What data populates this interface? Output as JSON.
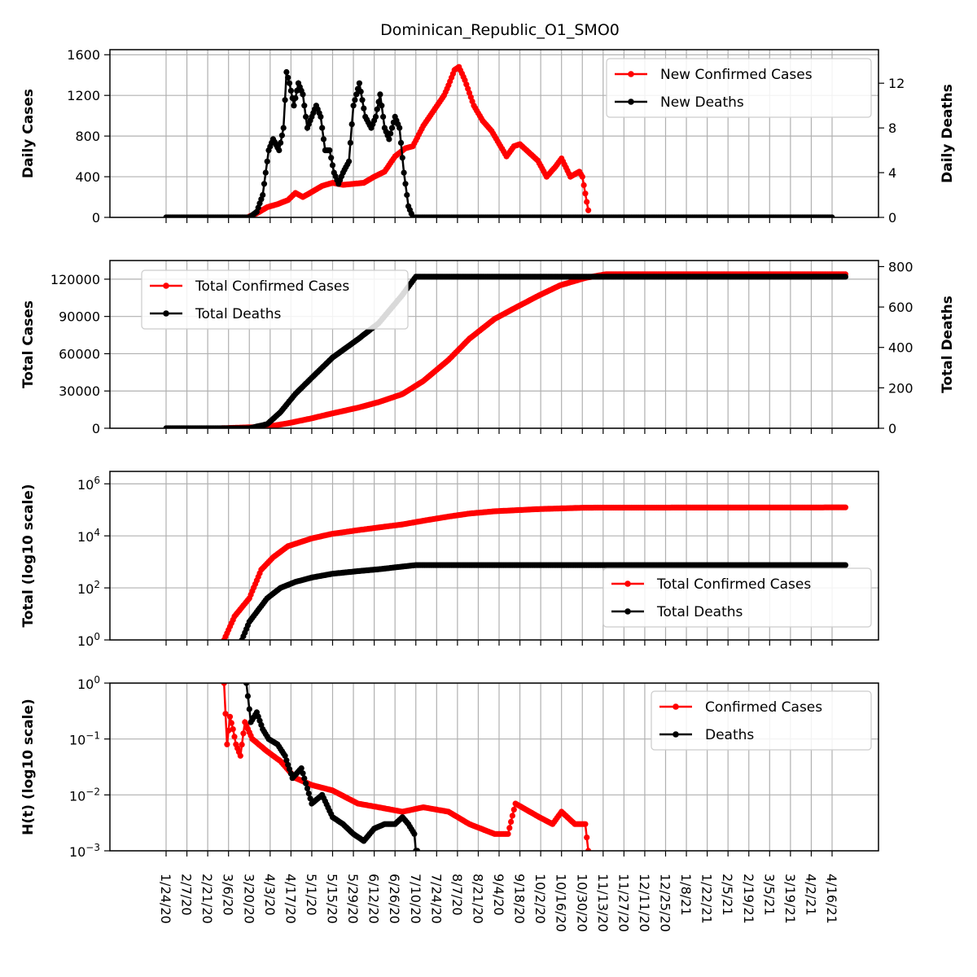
{
  "figure": {
    "title": "Dominican_Republic_O1_SMO0"
  },
  "colors": {
    "confirmed": "#ff0000",
    "deaths": "#000000",
    "grid": "#b0b0b0",
    "frame": "#000000"
  },
  "x_tick_labels": [
    "1/24/20",
    "2/7/20",
    "2/21/20",
    "3/6/20",
    "3/20/20",
    "4/3/20",
    "4/17/20",
    "5/1/20",
    "5/15/20",
    "5/29/20",
    "6/12/20",
    "6/26/20",
    "7/10/20",
    "7/24/20",
    "8/7/20",
    "8/21/20",
    "9/4/20",
    "9/18/20",
    "10/2/20",
    "10/16/20",
    "10/30/20",
    "11/13/20",
    "11/27/20",
    "12/11/20",
    "12/25/20",
    "1/8/21",
    "1/22/21",
    "2/5/21",
    "2/19/21",
    "3/5/21",
    "3/19/21",
    "4/2/21",
    "4/16/21"
  ],
  "chart_data": [
    {
      "type": "line",
      "ylabel": "Daily Cases",
      "ylabel_right": "Daily Deaths",
      "ylim": [
        0,
        1650
      ],
      "ylim_right": [
        0,
        15
      ],
      "yticks": [
        "0",
        "400",
        "800",
        "1200",
        "1600"
      ],
      "yticks_right": [
        "0",
        "4",
        "8",
        "12"
      ],
      "legend": {
        "placement": "top-right",
        "entries": [
          "New Confirmed Cases",
          "New Deaths"
        ]
      },
      "grid": true,
      "series": [
        {
          "name": "New Confirmed Cases",
          "axis": "left",
          "x": [
            "3/20/20",
            "3/25/20",
            "4/1/20",
            "4/8/20",
            "4/15/20",
            "4/20/20",
            "4/25/20",
            "5/1/20",
            "5/8/20",
            "5/15/20",
            "5/22/20",
            "5/29/20",
            "6/5/20",
            "6/12/20",
            "6/19/20",
            "6/26/20",
            "7/3/20",
            "7/8/20",
            "7/15/20",
            "7/22/20",
            "7/29/20",
            "8/1/20",
            "8/5/20",
            "8/8/20",
            "8/12/20",
            "8/18/20",
            "8/24/20",
            "8/30/20",
            "9/5/20",
            "9/9/20",
            "9/14/20",
            "9/18/20",
            "9/24/20",
            "9/30/20",
            "10/6/20",
            "10/12/20",
            "10/16/20",
            "10/22/20",
            "10/28/20",
            "10/30/20",
            "11/3/20"
          ],
          "values": [
            10,
            40,
            100,
            130,
            170,
            240,
            200,
            250,
            310,
            340,
            320,
            330,
            340,
            400,
            450,
            600,
            680,
            700,
            900,
            1050,
            1200,
            1300,
            1450,
            1480,
            1350,
            1100,
            950,
            850,
            700,
            600,
            700,
            720,
            640,
            560,
            400,
            500,
            580,
            400,
            450,
            400,
            70
          ]
        },
        {
          "name": "New Deaths",
          "axis": "right",
          "x": [
            "1/24/20",
            "3/20/20",
            "3/25/20",
            "3/29/20",
            "4/2/20",
            "4/5/20",
            "4/9/20",
            "4/12/20",
            "4/14/20",
            "4/16/20",
            "4/19/20",
            "4/22/20",
            "4/25/20",
            "4/28/20",
            "5/1/20",
            "5/4/20",
            "5/7/20",
            "5/10/20",
            "5/13/20",
            "5/16/20",
            "5/19/20",
            "5/22/20",
            "5/26/20",
            "5/29/20",
            "6/2/20",
            "6/6/20",
            "6/10/20",
            "6/13/20",
            "6/16/20",
            "6/19/20",
            "6/22/20",
            "6/26/20",
            "6/29/20",
            "7/2/20",
            "7/5/20",
            "7/8/20",
            "7/10/20",
            "7/11/20",
            "4/16/21"
          ],
          "values": [
            0,
            0,
            0.5,
            2,
            6,
            7,
            6,
            8,
            13,
            12,
            10,
            12,
            11,
            8,
            9,
            10,
            9,
            6,
            6,
            4,
            3,
            4,
            5,
            10,
            12,
            9,
            8,
            9,
            11,
            8,
            7,
            9,
            8,
            4,
            1,
            0,
            0,
            0,
            0
          ]
        }
      ]
    },
    {
      "type": "line",
      "ylabel": "Total Cases",
      "ylabel_right": "Total Deaths",
      "ylim": [
        0,
        135000
      ],
      "ylim_right": [
        0,
        830
      ],
      "yticks": [
        "0",
        "30000",
        "60000",
        "90000",
        "120000"
      ],
      "yticks_right": [
        "0",
        "200",
        "400",
        "600",
        "800"
      ],
      "legend": {
        "placement": "top-left",
        "entries": [
          "Total Confirmed Cases",
          "Total Deaths"
        ]
      },
      "grid": true,
      "series": [
        {
          "name": "Total Confirmed Cases",
          "axis": "left",
          "x": [
            "3/1/20",
            "4/1/20",
            "4/15/20",
            "5/1/20",
            "5/15/20",
            "6/1/20",
            "6/15/20",
            "7/1/20",
            "7/15/20",
            "8/1/20",
            "8/15/20",
            "9/1/20",
            "9/15/20",
            "10/1/20",
            "10/15/20",
            "11/1/20",
            "11/15/20",
            "4/25/21"
          ],
          "values": [
            0,
            1200,
            4000,
            8000,
            12000,
            16500,
            21000,
            27500,
            38000,
            55000,
            72000,
            88000,
            97000,
            107000,
            115000,
            121000,
            124000,
            124000
          ]
        },
        {
          "name": "Total Deaths",
          "axis": "right",
          "x": [
            "1/24/20",
            "3/20/20",
            "4/1/20",
            "4/10/20",
            "4/20/20",
            "5/1/20",
            "5/15/20",
            "6/1/20",
            "6/15/20",
            "7/1/20",
            "7/10/20",
            "4/25/21"
          ],
          "values": [
            0,
            0,
            20,
            80,
            170,
            250,
            350,
            440,
            520,
            660,
            750,
            750
          ]
        }
      ]
    },
    {
      "type": "line",
      "ylabel": "Total (log10 scale)",
      "yscale": "log",
      "ylim": [
        1,
        3000000
      ],
      "yticks": [
        "10^0",
        "10^2",
        "10^4",
        "10^6"
      ],
      "legend": {
        "placement": "bottom-right",
        "entries": [
          "Total Confirmed Cases",
          "Total Deaths"
        ]
      },
      "grid": true,
      "series": [
        {
          "name": "Total Confirmed Cases",
          "x": [
            "3/3/20",
            "3/10/20",
            "3/20/20",
            "3/28/20",
            "4/5/20",
            "4/15/20",
            "5/1/20",
            "5/15/20",
            "6/1/20",
            "6/15/20",
            "7/1/20",
            "7/15/20",
            "8/1/20",
            "8/15/20",
            "9/1/20",
            "10/1/20",
            "11/1/20",
            "4/25/21"
          ],
          "values": [
            1,
            8,
            40,
            500,
            1500,
            4000,
            8000,
            12000,
            16500,
            21000,
            27500,
            38000,
            55000,
            72000,
            88000,
            107000,
            121000,
            124000
          ]
        },
        {
          "name": "Total Deaths",
          "x": [
            "3/15/20",
            "3/20/20",
            "4/1/20",
            "4/10/20",
            "4/20/20",
            "5/1/20",
            "5/15/20",
            "6/1/20",
            "6/15/20",
            "7/1/20",
            "7/10/20",
            "4/25/21"
          ],
          "values": [
            1,
            5,
            40,
            100,
            170,
            250,
            350,
            440,
            520,
            660,
            750,
            750
          ]
        }
      ]
    },
    {
      "type": "line",
      "ylabel": "H(t) (log10 scale)",
      "yscale": "log",
      "ylim": [
        0.001,
        1
      ],
      "yticks": [
        "10^-3",
        "10^-2",
        "10^-1",
        "10^0"
      ],
      "legend": {
        "placement": "top-right",
        "entries": [
          "Confirmed Cases",
          "Deaths"
        ]
      },
      "grid": true,
      "series": [
        {
          "name": "Confirmed Cases",
          "x": [
            "3/3/20",
            "3/5/20",
            "3/7/20",
            "3/9/20",
            "3/11/20",
            "3/14/20",
            "3/17/20",
            "3/22/20",
            "4/1/20",
            "4/10/20",
            "4/20/20",
            "5/1/20",
            "5/15/20",
            "6/1/20",
            "6/15/20",
            "7/1/20",
            "7/15/20",
            "8/1/20",
            "8/15/20",
            "9/1/20",
            "9/10/20",
            "9/15/20",
            "10/1/20",
            "10/10/20",
            "10/16/20",
            "10/25/20",
            "11/1/20",
            "11/3/20"
          ],
          "values": [
            1,
            0.08,
            0.25,
            0.15,
            0.08,
            0.05,
            0.2,
            0.1,
            0.06,
            0.04,
            0.02,
            0.015,
            0.012,
            0.007,
            0.006,
            0.005,
            0.006,
            0.005,
            0.003,
            0.002,
            0.002,
            0.007,
            0.004,
            0.003,
            0.005,
            0.003,
            0.003,
            0.001
          ]
        },
        {
          "name": "Deaths",
          "x": [
            "3/18/20",
            "3/21/20",
            "3/25/20",
            "3/29/20",
            "4/2/20",
            "4/8/20",
            "4/13/20",
            "4/18/20",
            "4/24/20",
            "5/1/20",
            "5/8/20",
            "5/15/20",
            "5/22/20",
            "5/29/20",
            "6/5/20",
            "6/12/20",
            "6/19/20",
            "6/26/20",
            "7/1/20",
            "7/5/20",
            "7/9/20",
            "7/11/20"
          ],
          "values": [
            1,
            0.2,
            0.3,
            0.15,
            0.1,
            0.08,
            0.05,
            0.02,
            0.03,
            0.007,
            0.01,
            0.004,
            0.003,
            0.002,
            0.0015,
            0.0025,
            0.003,
            0.003,
            0.004,
            0.003,
            0.002,
            0.0004
          ]
        }
      ]
    }
  ]
}
